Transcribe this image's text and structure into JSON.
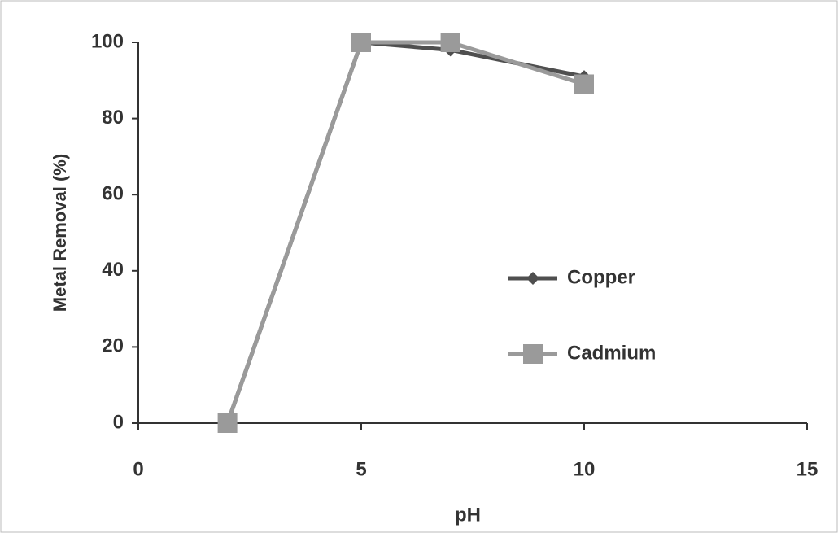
{
  "chart_data": {
    "type": "line",
    "x_label": "pH",
    "y_label": "Metal Removal (%)",
    "x": [
      2,
      5,
      7,
      10
    ],
    "series": [
      {
        "name": "Copper",
        "color": "#4f4f4f",
        "marker": "diamond",
        "values": [
          0,
          100,
          98,
          91
        ]
      },
      {
        "name": "Cadmium",
        "color": "#9a9a9a",
        "marker": "square",
        "values": [
          0,
          100,
          100,
          89
        ]
      }
    ],
    "xlim": [
      0,
      15
    ],
    "xticks": [
      0,
      5,
      10,
      15
    ],
    "ylim": [
      0,
      100
    ],
    "yticks": [
      0,
      20,
      40,
      60,
      80,
      100
    ],
    "grid": false,
    "legend": "center-right"
  }
}
